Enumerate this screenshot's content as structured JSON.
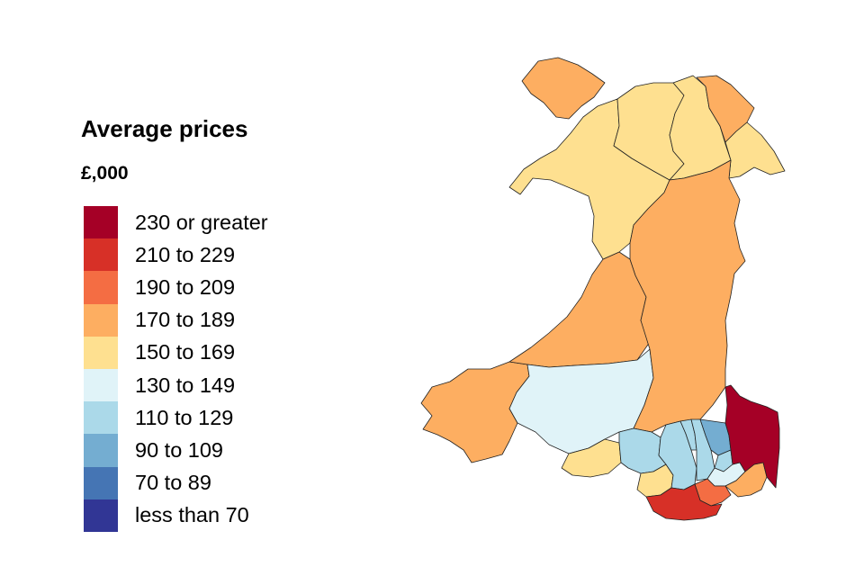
{
  "legend": {
    "title": "Average prices",
    "unit": "£,000",
    "bands": [
      {
        "label": "230 or greater",
        "color": "#a50026"
      },
      {
        "label": "210 to 229",
        "color": "#d73027"
      },
      {
        "label": "190 to 209",
        "color": "#f46d43"
      },
      {
        "label": "170 to 189",
        "color": "#fdae61"
      },
      {
        "label": "150 to 169",
        "color": "#fee090"
      },
      {
        "label": "130 to 149",
        "color": "#e0f3f8"
      },
      {
        "label": "110 to 129",
        "color": "#abd9e9"
      },
      {
        "label": "90 to 109",
        "color": "#74add1"
      },
      {
        "label": "70 to 89",
        "color": "#4575b4"
      },
      {
        "label": "less than 70",
        "color": "#313695"
      }
    ]
  },
  "map": {
    "regions": [
      {
        "name": "anglesey",
        "color": "#fdae61"
      },
      {
        "name": "gwynedd",
        "color": "#fee090"
      },
      {
        "name": "conwy",
        "color": "#fee090"
      },
      {
        "name": "denbighshire",
        "color": "#fee090"
      },
      {
        "name": "flintshire",
        "color": "#fdae61"
      },
      {
        "name": "wrexham",
        "color": "#fee090"
      },
      {
        "name": "powys",
        "color": "#fdae61"
      },
      {
        "name": "ceredigion",
        "color": "#fdae61"
      },
      {
        "name": "pembrokeshire",
        "color": "#fdae61"
      },
      {
        "name": "carmarthenshire",
        "color": "#e0f3f8"
      },
      {
        "name": "swansea",
        "color": "#fee090"
      },
      {
        "name": "neath-port-talbot",
        "color": "#abd9e9"
      },
      {
        "name": "bridgend",
        "color": "#fee090"
      },
      {
        "name": "rhondda-cynon-taf",
        "color": "#abd9e9"
      },
      {
        "name": "merthyr-tydfil",
        "color": "#abd9e9"
      },
      {
        "name": "caerphilly",
        "color": "#abd9e9"
      },
      {
        "name": "blaenau-gwent",
        "color": "#74add1"
      },
      {
        "name": "torfaen",
        "color": "#abd9e9"
      },
      {
        "name": "newport",
        "color": "#e0f3f8"
      },
      {
        "name": "monmouthshire",
        "color": "#a50026"
      },
      {
        "name": "cardiff",
        "color": "#f46d43"
      },
      {
        "name": "vale-of-glamorgan",
        "color": "#d73027"
      },
      {
        "name": "newport-coast",
        "color": "#fdae61"
      }
    ]
  }
}
